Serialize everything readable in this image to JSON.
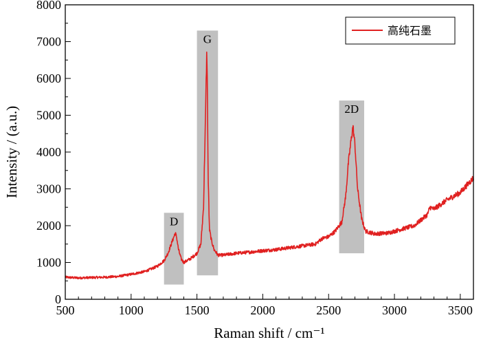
{
  "chart_data": {
    "type": "line",
    "title": "",
    "xlabel": "Raman shift / cm⁻¹",
    "ylabel": "Intensity / (a.u.)",
    "xlim": [
      500,
      3600
    ],
    "ylim": [
      0,
      8000
    ],
    "xticks": [
      500,
      1000,
      1500,
      2000,
      2500,
      3000,
      3500
    ],
    "yticks": [
      0,
      1000,
      2000,
      3000,
      4000,
      5000,
      6000,
      7000,
      8000
    ],
    "grid": false,
    "legend_position": "top-right",
    "series": [
      {
        "name": "高纯石墨",
        "color": "#e02020",
        "x": [
          500,
          600,
          700,
          800,
          900,
          1000,
          1100,
          1150,
          1200,
          1250,
          1280,
          1300,
          1320,
          1335,
          1345,
          1360,
          1380,
          1400,
          1450,
          1500,
          1530,
          1550,
          1565,
          1575,
          1580,
          1585,
          1595,
          1610,
          1630,
          1660,
          1700,
          1800,
          1900,
          2000,
          2100,
          2200,
          2300,
          2400,
          2450,
          2500,
          2550,
          2600,
          2630,
          2650,
          2670,
          2685,
          2700,
          2720,
          2750,
          2780,
          2850,
          2950,
          3050,
          3150,
          3250,
          3270,
          3300,
          3400,
          3500,
          3600
        ],
        "y": [
          600,
          580,
          590,
          600,
          620,
          680,
          750,
          820,
          900,
          1050,
          1250,
          1450,
          1650,
          1800,
          1700,
          1350,
          1100,
          1000,
          1100,
          1250,
          1500,
          2500,
          5000,
          6800,
          5500,
          3300,
          1900,
          1600,
          1350,
          1200,
          1200,
          1250,
          1280,
          1320,
          1350,
          1400,
          1450,
          1500,
          1650,
          1700,
          1850,
          2100,
          2800,
          3700,
          4300,
          4700,
          4200,
          3000,
          2200,
          1850,
          1780,
          1800,
          1900,
          2000,
          2300,
          2500,
          2450,
          2700,
          2900,
          3300
        ]
      }
    ],
    "annotations": [
      {
        "label": "D",
        "x_range": [
          1250,
          1400
        ],
        "y_range": [
          400,
          2350
        ]
      },
      {
        "label": "G",
        "x_range": [
          1500,
          1660
        ],
        "y_range": [
          650,
          7300
        ]
      },
      {
        "label": "2D",
        "x_range": [
          2580,
          2770
        ],
        "y_range": [
          1250,
          5400
        ]
      }
    ],
    "shade_color": "#c0c0c0"
  }
}
